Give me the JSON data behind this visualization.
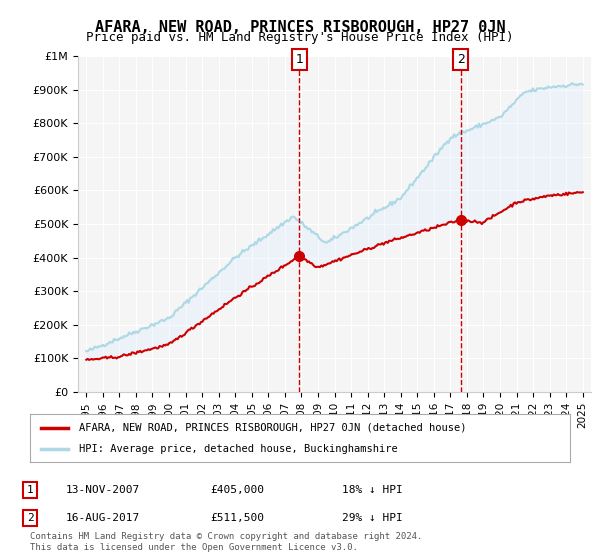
{
  "title": "AFARA, NEW ROAD, PRINCES RISBOROUGH, HP27 0JN",
  "subtitle": "Price paid vs. HM Land Registry's House Price Index (HPI)",
  "ylabel_ticks": [
    "£0",
    "£100K",
    "£200K",
    "£300K",
    "£400K",
    "£500K",
    "£600K",
    "£700K",
    "£800K",
    "£900K",
    "£1M"
  ],
  "ytick_values": [
    0,
    100000,
    200000,
    300000,
    400000,
    500000,
    600000,
    700000,
    800000,
    900000,
    1000000
  ],
  "ylim": [
    0,
    1000000
  ],
  "xlim_start": 1994.5,
  "xlim_end": 2025.5,
  "xtick_years": [
    1995,
    1996,
    1997,
    1998,
    1999,
    2000,
    2001,
    2002,
    2003,
    2004,
    2005,
    2006,
    2007,
    2008,
    2009,
    2010,
    2011,
    2012,
    2013,
    2014,
    2015,
    2016,
    2017,
    2018,
    2019,
    2020,
    2021,
    2022,
    2023,
    2024,
    2025
  ],
  "hpi_color": "#add8e6",
  "sale_color": "#cc0000",
  "vline_color": "#cc0000",
  "vline_style": "--",
  "marker1_x": 2007.87,
  "marker1_y": 405000,
  "marker2_x": 2017.63,
  "marker2_y": 511500,
  "legend_entries": [
    "AFARA, NEW ROAD, PRINCES RISBOROUGH, HP27 0JN (detached house)",
    "HPI: Average price, detached house, Buckinghamshire"
  ],
  "legend_colors": [
    "#cc0000",
    "#add8e6"
  ],
  "table_rows": [
    {
      "num": "1",
      "date": "13-NOV-2007",
      "price": "£405,000",
      "pct": "18% ↓ HPI"
    },
    {
      "num": "2",
      "date": "16-AUG-2017",
      "price": "£511,500",
      "pct": "29% ↓ HPI"
    }
  ],
  "footnote": "Contains HM Land Registry data © Crown copyright and database right 2024.\nThis data is licensed under the Open Government Licence v3.0.",
  "bg_color": "#ffffff",
  "plot_bg_color": "#f5f5f5",
  "shade_color": "#ddeeff"
}
